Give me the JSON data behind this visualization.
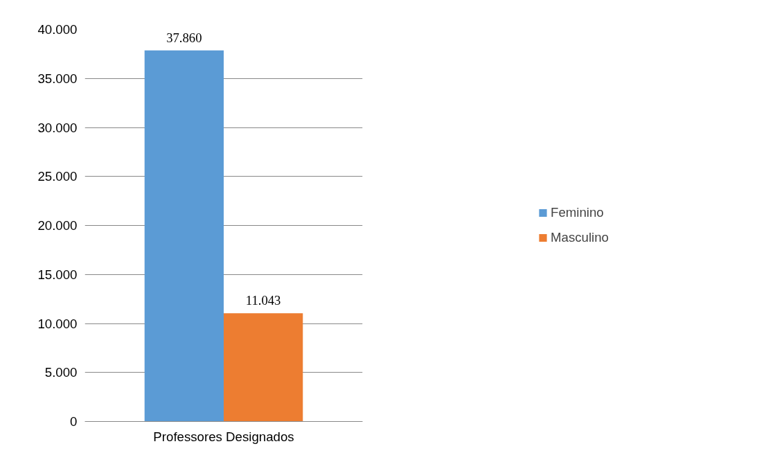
{
  "chart_data": {
    "type": "bar",
    "categories": [
      "Professores Designados"
    ],
    "series": [
      {
        "name": "Feminino",
        "color": "#5b9bd5",
        "values": [
          37860
        ],
        "value_labels": [
          "37.860"
        ]
      },
      {
        "name": "Masculino",
        "color": "#ed7d31",
        "values": [
          11043
        ],
        "value_labels": [
          "11.043"
        ]
      }
    ],
    "ylim": [
      0,
      40000
    ],
    "yticks": [
      {
        "value": 0,
        "label": "0"
      },
      {
        "value": 5000,
        "label": "5.000"
      },
      {
        "value": 10000,
        "label": "10.000"
      },
      {
        "value": 15000,
        "label": "15.000"
      },
      {
        "value": 20000,
        "label": "20.000"
      },
      {
        "value": 25000,
        "label": "25.000"
      },
      {
        "value": 30000,
        "label": "30.000"
      },
      {
        "value": 35000,
        "label": "35.000"
      },
      {
        "value": 40000,
        "label": "40.000"
      }
    ],
    "grid": "y",
    "legend": "right"
  }
}
